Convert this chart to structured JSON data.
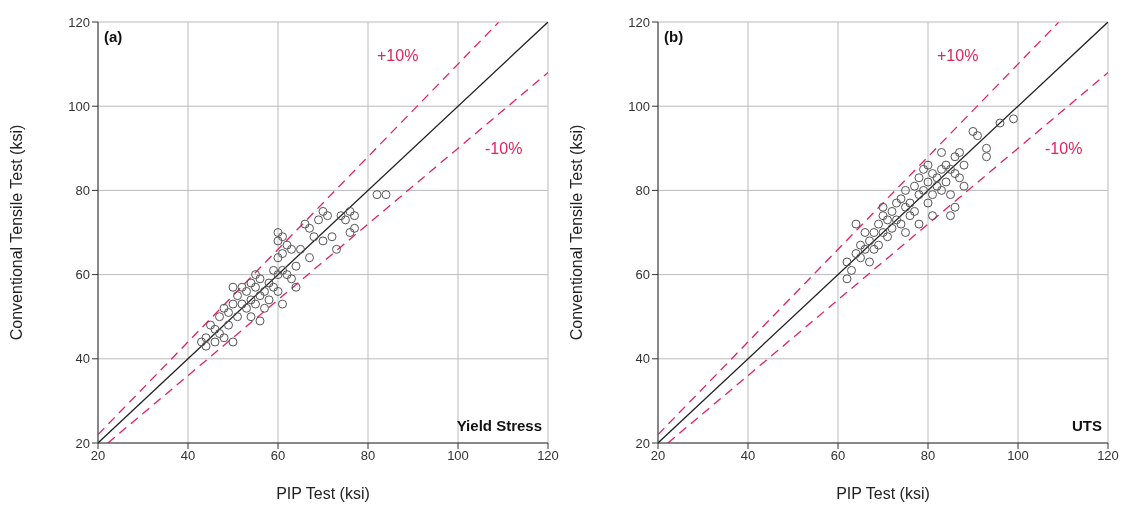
{
  "chart_data": [
    {
      "type": "scatter",
      "xlabel": "PIP Test (ksi)",
      "ylabel": "Conventional Tensile Test (ksi)",
      "xlim": [
        20,
        120
      ],
      "ylim": [
        20,
        120
      ],
      "xticks": [
        20,
        40,
        60,
        80,
        100,
        120
      ],
      "yticks": [
        20,
        40,
        60,
        80,
        100,
        120
      ],
      "grid": true,
      "annotations": [
        "(a)",
        "Yield Stress",
        "+10%",
        "-10%"
      ],
      "series": [
        {
          "color": "#555555",
          "marker": "circle",
          "x": [
            43,
            44,
            44,
            45,
            46,
            46,
            47,
            47,
            48,
            48,
            49,
            49,
            50,
            50,
            50,
            51,
            51,
            52,
            52,
            53,
            53,
            54,
            54,
            54,
            55,
            55,
            55,
            56,
            56,
            56,
            57,
            57,
            58,
            58,
            59,
            59,
            60,
            60,
            60,
            60,
            60,
            61,
            61,
            61,
            61,
            62,
            62,
            63,
            63,
            64,
            64,
            65,
            66,
            67,
            67,
            68,
            69,
            70,
            70,
            71,
            72,
            73,
            74,
            75,
            76,
            76,
            77,
            77,
            82,
            84
          ],
          "values": [
            44,
            45,
            43,
            48,
            47,
            44,
            50,
            46,
            52,
            45,
            51,
            48,
            57,
            53,
            44,
            55,
            50,
            53,
            57,
            56,
            52,
            58,
            54,
            50,
            60,
            57,
            53,
            55,
            59,
            49,
            56,
            52,
            58,
            54,
            61,
            57,
            70,
            68,
            64,
            60,
            56,
            69,
            65,
            61,
            53,
            67,
            60,
            59,
            66,
            57,
            62,
            66,
            72,
            71,
            64,
            69,
            73,
            75,
            68,
            74,
            69,
            66,
            74,
            73,
            75,
            70,
            74,
            71,
            79,
            79
          ]
        },
        {
          "type": "line",
          "color": "#222222",
          "marker": "none",
          "line_style": "solid",
          "x": [
            20,
            120
          ],
          "values": [
            20,
            120
          ]
        },
        {
          "type": "line",
          "color": "#e0245e",
          "marker": "none",
          "line_style": "dashed",
          "x": [
            20,
            109
          ],
          "values": [
            22,
            119.9
          ]
        },
        {
          "type": "line",
          "color": "#e0245e",
          "marker": "none",
          "line_style": "dashed",
          "x": [
            22.2,
            120
          ],
          "values": [
            20,
            108
          ]
        }
      ]
    },
    {
      "type": "scatter",
      "xlabel": "PIP Test (ksi)",
      "ylabel": "Conventional Tensile Test (ksi)",
      "xlim": [
        20,
        120
      ],
      "ylim": [
        20,
        120
      ],
      "xticks": [
        20,
        40,
        60,
        80,
        100,
        120
      ],
      "yticks": [
        20,
        40,
        60,
        80,
        100,
        120
      ],
      "grid": true,
      "annotations": [
        "(b)",
        "UTS",
        "+10%",
        "-10%"
      ],
      "series": [
        {
          "color": "#555555",
          "marker": "circle",
          "x": [
            62,
            62,
            63,
            64,
            64,
            65,
            65,
            66,
            66,
            67,
            67,
            68,
            68,
            69,
            69,
            70,
            70,
            70,
            71,
            71,
            72,
            72,
            73,
            73,
            74,
            74,
            75,
            75,
            75,
            76,
            76,
            77,
            77,
            78,
            78,
            78,
            79,
            79,
            80,
            80,
            80,
            81,
            81,
            81,
            82,
            82,
            83,
            83,
            83,
            84,
            84,
            85,
            85,
            85,
            86,
            86,
            86,
            87,
            87,
            88,
            88,
            90,
            91,
            93,
            93,
            96,
            99
          ],
          "values": [
            63,
            59,
            61,
            65,
            72,
            67,
            64,
            66,
            70,
            68,
            63,
            70,
            66,
            72,
            67,
            74,
            70,
            76,
            73,
            69,
            75,
            71,
            77,
            73,
            78,
            72,
            76,
            80,
            70,
            77,
            74,
            81,
            75,
            83,
            79,
            72,
            85,
            80,
            82,
            77,
            86,
            84,
            79,
            74,
            83,
            81,
            89,
            85,
            80,
            86,
            82,
            85,
            79,
            74,
            88,
            84,
            76,
            89,
            83,
            86,
            81,
            94,
            93,
            90,
            88,
            96,
            97
          ]
        },
        {
          "type": "line",
          "color": "#222222",
          "marker": "none",
          "line_style": "solid",
          "x": [
            20,
            120
          ],
          "values": [
            20,
            120
          ]
        },
        {
          "type": "line",
          "color": "#e0245e",
          "marker": "none",
          "line_style": "dashed",
          "x": [
            20,
            109
          ],
          "values": [
            22,
            119.9
          ]
        },
        {
          "type": "line",
          "color": "#e0245e",
          "marker": "none",
          "line_style": "dashed",
          "x": [
            22.2,
            120
          ],
          "values": [
            20,
            108
          ]
        }
      ]
    }
  ]
}
